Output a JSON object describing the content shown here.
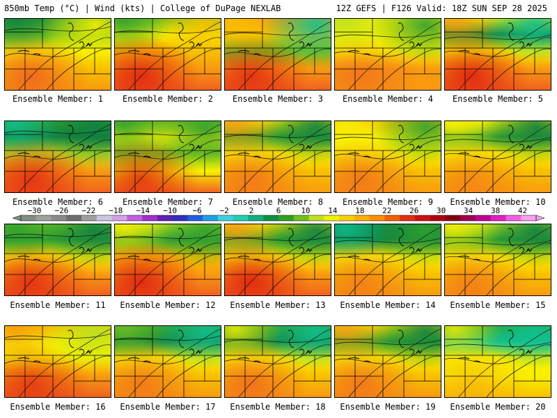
{
  "header": {
    "left_title": "850mb Temp (°C) | Wind (kts) | College of DuPage NEXLAB",
    "right_title": "12Z GEFS | F126 Valid: 18Z SUN SEP 28 2025"
  },
  "colorbar": {
    "units": "°C",
    "min": -32,
    "max": 44,
    "tick_labels": [
      "−30",
      "−26",
      "−22",
      "−18",
      "−14",
      "−10",
      "−6",
      "−2",
      "2",
      "6",
      "10",
      "14",
      "18",
      "22",
      "26",
      "30",
      "34",
      "38",
      "42"
    ],
    "colors": [
      "#7f8c7f",
      "#9aa39a",
      "#8a8a8a",
      "#6e6e6e",
      "#a0a0a0",
      "#c8c8e0",
      "#d6a0e6",
      "#c060e0",
      "#a030c8",
      "#6020b0",
      "#3030c0",
      "#2060e0",
      "#20a0e0",
      "#40d0e0",
      "#20d0b0",
      "#10b080",
      "#109040",
      "#30a020",
      "#70c020",
      "#c0e020",
      "#f0f000",
      "#f8d000",
      "#f8b000",
      "#f89000",
      "#f06000",
      "#e03010",
      "#d01010",
      "#b00010",
      "#800010",
      "#a00050",
      "#c00090",
      "#e020c0",
      "#f060e0",
      "#f8a0f0"
    ]
  },
  "palette": {
    "red": "#e02010",
    "orange_red": "#f06020",
    "orange": "#f89a10",
    "amber": "#f8c000",
    "yellow": "#f8f000",
    "yellow_green": "#b8e020",
    "light_green": "#70c020",
    "green": "#30a030",
    "dark_green": "#108040",
    "teal": "#10c090"
  },
  "members": [
    {
      "label": "Ensemble Member: 1",
      "north": [
        "dark_green",
        "green",
        "light_green",
        "yellow"
      ],
      "south": [
        "orange_red",
        "orange",
        "amber",
        "yellow"
      ],
      "hot": 0.9
    },
    {
      "label": "Ensemble Member: 2",
      "north": [
        "green",
        "light_green",
        "yellow",
        "amber"
      ],
      "south": [
        "red",
        "orange_red",
        "orange",
        "amber"
      ],
      "hot": 0.9
    },
    {
      "label": "Ensemble Member: 3",
      "north": [
        "amber",
        "orange",
        "amber",
        "teal"
      ],
      "south": [
        "red",
        "orange_red",
        "orange",
        "light_green"
      ],
      "hot": 0.8
    },
    {
      "label": "Ensemble Member: 4",
      "north": [
        "yellow_green",
        "yellow",
        "yellow",
        "green"
      ],
      "south": [
        "orange_red",
        "orange",
        "orange",
        "yellow"
      ],
      "hot": 0.6
    },
    {
      "label": "Ensemble Member: 5",
      "north": [
        "orange",
        "yellow",
        "dark_green",
        "teal"
      ],
      "south": [
        "red",
        "orange_red",
        "orange",
        "yellow"
      ],
      "hot": 0.9
    },
    {
      "label": "Ensemble Member: 6",
      "north": [
        "teal",
        "green",
        "dark_green",
        "dark_green"
      ],
      "south": [
        "red",
        "orange_red",
        "orange",
        "yellow_green"
      ],
      "hot": 0.8
    },
    {
      "label": "Ensemble Member: 7",
      "north": [
        "green",
        "light_green",
        "yellow",
        "green"
      ],
      "south": [
        "red",
        "orange_red",
        "yellow",
        "light_green"
      ],
      "hot": 0.8
    },
    {
      "label": "Ensemble Member: 8",
      "north": [
        "orange",
        "yellow",
        "green",
        "dark_green"
      ],
      "south": [
        "orange_red",
        "orange",
        "amber",
        "yellow"
      ],
      "hot": 0.7
    },
    {
      "label": "Ensemble Member: 9",
      "north": [
        "yellow",
        "amber",
        "yellow",
        "green"
      ],
      "south": [
        "orange_red",
        "orange",
        "amber",
        "yellow"
      ],
      "hot": 0.7
    },
    {
      "label": "Ensemble Member: 10",
      "north": [
        "yellow",
        "yellow",
        "green",
        "dark_green"
      ],
      "south": [
        "orange_red",
        "orange",
        "amber",
        "yellow"
      ],
      "hot": 0.5
    },
    {
      "label": "Ensemble Member: 11",
      "north": [
        "green",
        "light_green",
        "green",
        "dark_green"
      ],
      "south": [
        "red",
        "orange_red",
        "orange",
        "yellow"
      ],
      "hot": 0.8
    },
    {
      "label": "Ensemble Member: 12",
      "north": [
        "yellow",
        "yellow_green",
        "green",
        "green"
      ],
      "south": [
        "red",
        "orange_red",
        "orange",
        "amber"
      ],
      "hot": 0.9
    },
    {
      "label": "Ensemble Member: 13",
      "north": [
        "orange",
        "yellow",
        "green",
        "dark_green"
      ],
      "south": [
        "red",
        "orange_red",
        "orange",
        "yellow"
      ],
      "hot": 0.9
    },
    {
      "label": "Ensemble Member: 14",
      "north": [
        "teal",
        "dark_green",
        "dark_green",
        "green"
      ],
      "south": [
        "orange_red",
        "orange",
        "amber",
        "yellow"
      ],
      "hot": 0.6
    },
    {
      "label": "Ensemble Member: 15",
      "north": [
        "yellow",
        "yellow_green",
        "green",
        "dark_green"
      ],
      "south": [
        "orange_red",
        "orange",
        "amber",
        "yellow"
      ],
      "hot": 0.6
    },
    {
      "label": "Ensemble Member: 16",
      "north": [
        "orange",
        "amber",
        "yellow",
        "yellow_green"
      ],
      "south": [
        "red",
        "orange_red",
        "orange",
        "yellow"
      ],
      "hot": 0.7
    },
    {
      "label": "Ensemble Member: 17",
      "north": [
        "light_green",
        "green",
        "dark_green",
        "teal"
      ],
      "south": [
        "orange_red",
        "orange",
        "amber",
        "yellow"
      ],
      "hot": 0.7
    },
    {
      "label": "Ensemble Member: 18",
      "north": [
        "yellow",
        "green",
        "dark_green",
        "teal"
      ],
      "south": [
        "orange_red",
        "orange",
        "amber",
        "yellow"
      ],
      "hot": 0.8
    },
    {
      "label": "Ensemble Member: 19",
      "north": [
        "orange",
        "yellow",
        "green",
        "dark_green"
      ],
      "south": [
        "orange_red",
        "orange",
        "amber",
        "yellow"
      ],
      "hot": 0.7
    },
    {
      "label": "Ensemble Member: 20",
      "north": [
        "yellow",
        "green",
        "teal",
        "teal"
      ],
      "south": [
        "orange",
        "amber",
        "yellow",
        "yellow"
      ],
      "hot": 0.5
    }
  ]
}
